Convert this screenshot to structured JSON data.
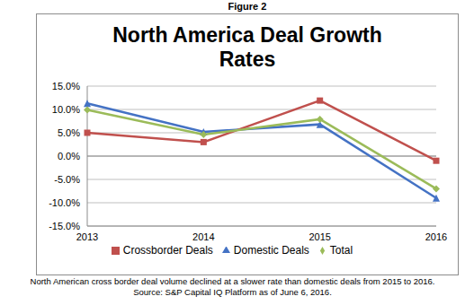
{
  "chart_data": {
    "type": "line",
    "title": "North America Deal Growth Rates",
    "annotations": [
      "Figure 2",
      "North American cross border deal volume declined at a slower rate than domestic deals from 2015 to 2016.",
      "Source: S&P Capital IQ Platform as of June 6, 2016."
    ],
    "categories": [
      "2013",
      "2014",
      "2015",
      "2016"
    ],
    "series": [
      {
        "name": "Domestic Deals",
        "color": "#4472c4",
        "marker": "triangle",
        "values": [
          11.3,
          5.2,
          6.8,
          -9.0
        ]
      },
      {
        "name": "Crossborder Deals",
        "color": "#c0504d",
        "marker": "square",
        "values": [
          5.0,
          3.0,
          11.9,
          -1.0
        ]
      },
      {
        "name": "Total",
        "color": "#9bbb59",
        "marker": "diamond",
        "values": [
          9.9,
          4.6,
          7.9,
          -7.0
        ]
      }
    ],
    "ylim": [
      -15,
      15
    ],
    "yticks": [
      {
        "value": -15,
        "label": "-15.0%"
      },
      {
        "value": -10,
        "label": "-10.0%"
      },
      {
        "value": -5,
        "label": "-5.0%"
      },
      {
        "value": 0,
        "label": "0.0%"
      },
      {
        "value": 5,
        "label": "5.0%"
      },
      {
        "value": 10,
        "label": "10.0%"
      },
      {
        "value": 15,
        "label": "15.0%"
      }
    ],
    "grid": true,
    "legend": "bottom"
  }
}
